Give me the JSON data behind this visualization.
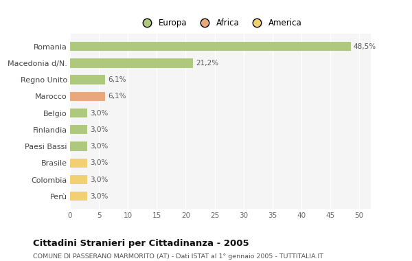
{
  "categories": [
    "Romania",
    "Macedonia d/N.",
    "Regno Unito",
    "Marocco",
    "Belgio",
    "Finlandia",
    "Paesi Bassi",
    "Brasile",
    "Colombia",
    "Perù"
  ],
  "values": [
    48.5,
    21.2,
    6.1,
    6.1,
    3.0,
    3.0,
    3.0,
    3.0,
    3.0,
    3.0
  ],
  "labels": [
    "48,5%",
    "21,2%",
    "6,1%",
    "6,1%",
    "3,0%",
    "3,0%",
    "3,0%",
    "3,0%",
    "3,0%",
    "3,0%"
  ],
  "colors": [
    "#aec97e",
    "#aec97e",
    "#aec97e",
    "#e8a87c",
    "#aec97e",
    "#aec97e",
    "#aec97e",
    "#f0d070",
    "#f0d070",
    "#f0d070"
  ],
  "legend_labels": [
    "Europa",
    "Africa",
    "America"
  ],
  "legend_colors": [
    "#aec97e",
    "#e8a87c",
    "#f0d070"
  ],
  "xlim": [
    0,
    52
  ],
  "xticks": [
    0,
    5,
    10,
    15,
    20,
    25,
    30,
    35,
    40,
    45,
    50
  ],
  "title": "Cittadini Stranieri per Cittadinanza - 2005",
  "subtitle": "COMUNE DI PASSERANO MARMORITO (AT) - Dati ISTAT al 1° gennaio 2005 - TUTTITALIA.IT",
  "bg_color": "#ffffff",
  "plot_bg_color": "#f5f5f5",
  "grid_color": "#ffffff",
  "bar_height": 0.55,
  "label_fontsize": 7.5,
  "ytick_fontsize": 8,
  "xtick_fontsize": 7.5
}
